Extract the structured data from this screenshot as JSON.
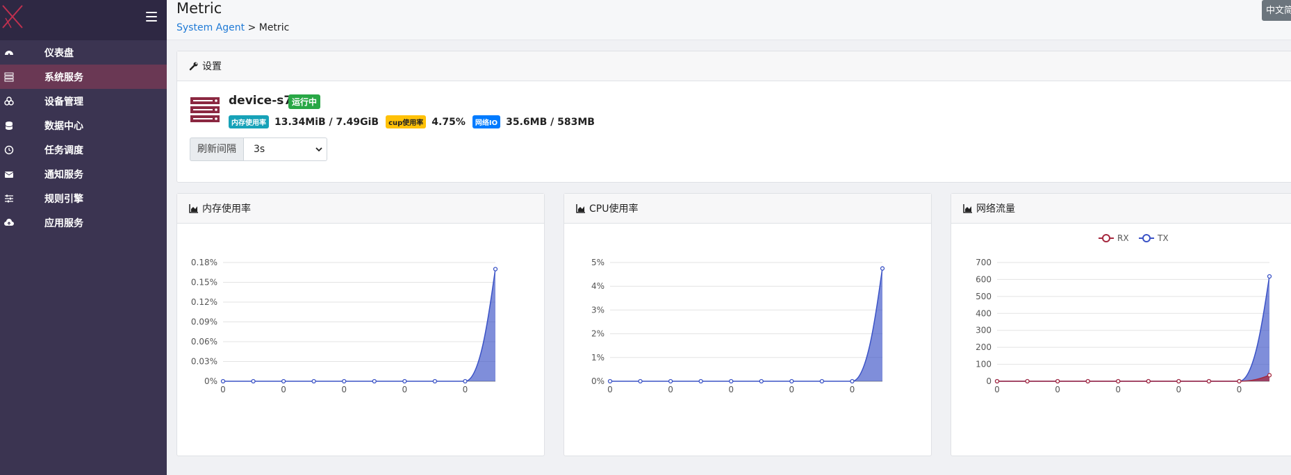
{
  "sidebar": {
    "items": [
      {
        "label": "仪表盘",
        "icon": "dashboard-icon"
      },
      {
        "label": "系统服务",
        "icon": "server-list-icon",
        "active": true
      },
      {
        "label": "设备管理",
        "icon": "devices-icon"
      },
      {
        "label": "数据中心",
        "icon": "database-icon"
      },
      {
        "label": "任务调度",
        "icon": "clock-icon"
      },
      {
        "label": "通知服务",
        "icon": "envelope-icon"
      },
      {
        "label": "规则引擎",
        "icon": "sliders-icon"
      },
      {
        "label": "应用服务",
        "icon": "cloud-upload-icon"
      }
    ]
  },
  "header": {
    "title": "Metric",
    "breadcrumb_link": "System Agent",
    "breadcrumb_sep": ">",
    "breadcrumb_current": "Metric",
    "lang_button": "中文简"
  },
  "settings": {
    "title": "设置",
    "device_name": "device-s7",
    "status": "运行中",
    "mem_badge": "内存使用率",
    "mem_value": "13.34MiB / 7.49GiB",
    "cpu_badge": "cup使用率",
    "cpu_value": "4.75%",
    "net_badge": "网络IO",
    "net_value": "35.6MB / 583MB",
    "refresh_label": "刷新间隔",
    "refresh_value": "3s"
  },
  "colors": {
    "sidebar_bg": "#3b3451",
    "active_item": "#6a3854",
    "status_green": "#28a745",
    "tx_blue": "#3a52c6",
    "rx_red": "#a5283e"
  },
  "charts": {
    "mem_title": "内存使用率",
    "cpu_title": "CPU使用率",
    "net_title": "网络流量"
  },
  "chart_data": [
    {
      "type": "area",
      "title": "内存使用率",
      "x": [
        "0",
        "",
        "0",
        "",
        "0",
        "",
        "0",
        "",
        "0",
        ""
      ],
      "yticks": [
        "0%",
        "0.03%",
        "0.06%",
        "0.09%",
        "0.12%",
        "0.15%",
        "0.18%"
      ],
      "ylim": [
        0,
        0.18
      ],
      "series": [
        {
          "values": [
            0,
            0,
            0,
            0,
            0,
            0,
            0,
            0,
            0,
            0.17
          ]
        }
      ]
    },
    {
      "type": "area",
      "title": "CPU使用率",
      "x": [
        "0",
        "",
        "0",
        "",
        "0",
        "",
        "0",
        "",
        "0",
        ""
      ],
      "yticks": [
        "0%",
        "1%",
        "2%",
        "3%",
        "4%",
        "5%"
      ],
      "ylim": [
        0,
        5
      ],
      "series": [
        {
          "values": [
            0,
            0,
            0,
            0,
            0,
            0,
            0,
            0,
            0,
            4.75
          ]
        }
      ]
    },
    {
      "type": "area",
      "title": "网络流量",
      "x": [
        "0",
        "",
        "0",
        "",
        "0",
        "",
        "0",
        "",
        "0",
        ""
      ],
      "yticks": [
        "0",
        "100",
        "200",
        "300",
        "400",
        "500",
        "600",
        "700"
      ],
      "ylim": [
        0,
        700
      ],
      "legend": "top-center",
      "series": [
        {
          "name": "RX",
          "values": [
            0,
            0,
            0,
            0,
            0,
            0,
            0,
            0,
            0,
            35.6
          ]
        },
        {
          "name": "TX",
          "values": [
            0,
            0,
            0,
            0,
            0,
            0,
            0,
            0,
            0,
            618
          ]
        }
      ]
    }
  ]
}
